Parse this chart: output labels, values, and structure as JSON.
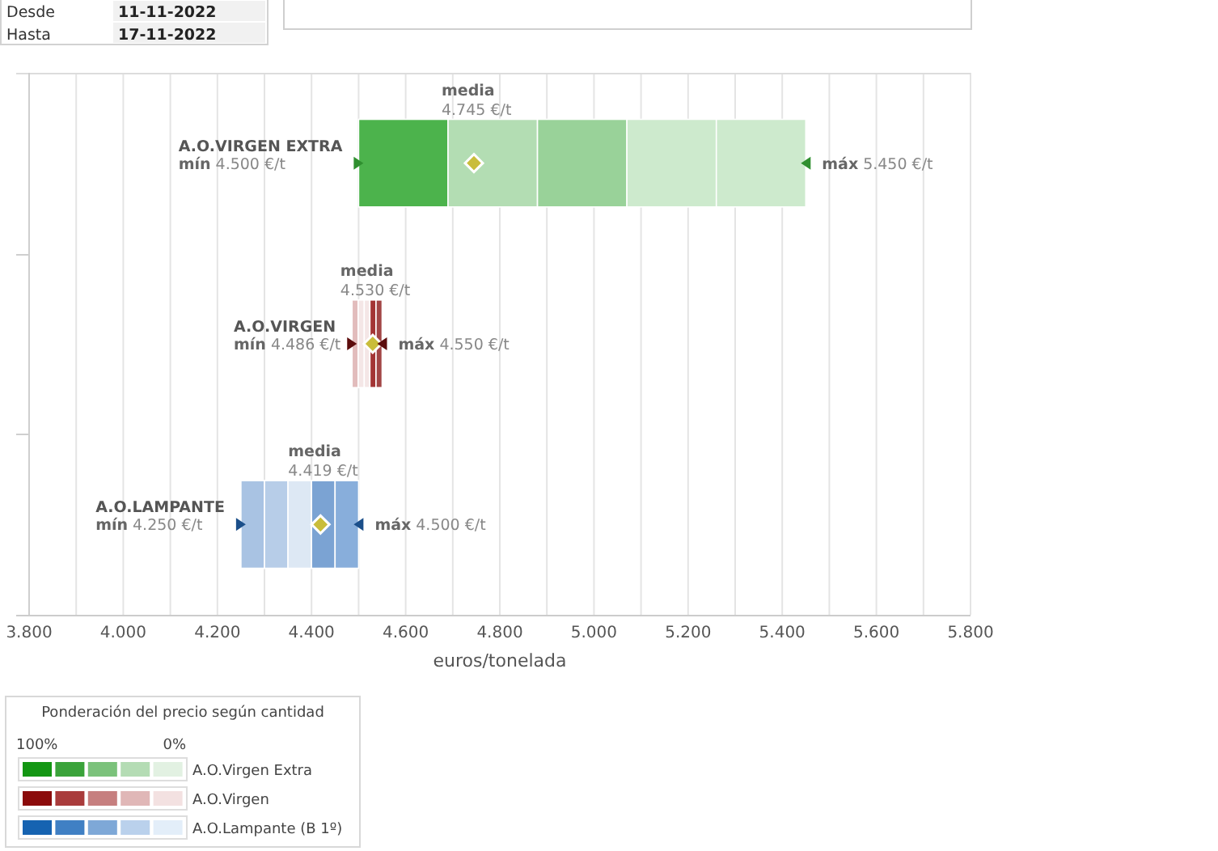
{
  "chart_data": {
    "type": "bar",
    "orientation": "horizontal",
    "categories": [
      "A.O.VIRGEN EXTRA",
      "A.O.VIRGEN",
      "A.O.LAMPANTE"
    ],
    "series": [
      {
        "base": [
          4500,
          4486,
          4250
        ],
        "values": [
          190,
          13,
          50
        ],
        "colors": [
          "#4cb34c",
          "#e2bcbc",
          "#a9c3e3"
        ]
      },
      {
        "base": [
          4690,
          4499,
          4300
        ],
        "values": [
          190,
          13,
          50
        ],
        "colors": [
          "#b3ddb3",
          "#f4e6e6",
          "#b7cde8"
        ]
      },
      {
        "base": [
          4880,
          4512,
          4350
        ],
        "values": [
          190,
          12,
          50
        ],
        "colors": [
          "#99d299",
          "#f4e6e6",
          "#dde8f4"
        ]
      },
      {
        "base": [
          5070,
          4524,
          4400
        ],
        "values": [
          190,
          13,
          50
        ],
        "colors": [
          "#cdeacd",
          "#a33434",
          "#7ba3d3"
        ]
      },
      {
        "base": [
          5260,
          4537,
          4450
        ],
        "values": [
          190,
          13,
          50
        ],
        "colors": [
          "#cdeacd",
          "#a24545",
          "#88aedb"
        ]
      },
      {
        "type": "scatter",
        "marker": "diamond",
        "color": "#c9bd3b",
        "values": [
          4745,
          4530,
          4419
        ]
      },
      {
        "type": "scatter",
        "marker": "triangle",
        "colors": [
          "#2f8f2f",
          "#5c0c0c",
          "#1b4f8a"
        ],
        "values": [
          4500,
          4486,
          4250
        ]
      },
      {
        "type": "scatter",
        "marker": "triangle",
        "colors": [
          "#2f8f2f",
          "#5c0c0c",
          "#1b4f8a"
        ],
        "values": [
          5450,
          4550,
          4500
        ]
      }
    ],
    "xlabel": "euros/tonelada",
    "xlim": [
      3800,
      5800
    ],
    "xticks": [
      {
        "value": 3800,
        "label": "3.800"
      },
      {
        "value": 3900,
        "label": null
      },
      {
        "value": 4000,
        "label": "4.000"
      },
      {
        "value": 4100,
        "label": null
      },
      {
        "value": 4200,
        "label": "4.200"
      },
      {
        "value": 4300,
        "label": null
      },
      {
        "value": 4400,
        "label": "4.400"
      },
      {
        "value": 4500,
        "label": null
      },
      {
        "value": 4600,
        "label": "4.600"
      },
      {
        "value": 4700,
        "label": null
      },
      {
        "value": 4800,
        "label": "4.800"
      },
      {
        "value": 4900,
        "label": null
      },
      {
        "value": 5000,
        "label": "5.000"
      },
      {
        "value": 5100,
        "label": null
      },
      {
        "value": 5200,
        "label": "5.200"
      },
      {
        "value": 5300,
        "label": null
      },
      {
        "value": 5400,
        "label": "5.400"
      },
      {
        "value": 5500,
        "label": null
      },
      {
        "value": 5600,
        "label": "5.600"
      },
      {
        "value": 5700,
        "label": null
      },
      {
        "value": 5800,
        "label": "5.800"
      }
    ],
    "grid": "x",
    "legend_title": "Ponderación del precio según cantidad",
    "annotations": [
      "Desde",
      "11-11-2022",
      "Hasta",
      "17-11-2022",
      "100%",
      "0%",
      "A.O.Virgen Extra",
      "A.O.Virgen",
      "A.O.Lampante (B 1º)",
      "media",
      "4.745 €/t",
      "mín",
      "4.500 €/t",
      "máx",
      "5.450 €/t",
      "media",
      "4.530 €/t",
      "mín",
      "4.486 €/t",
      "máx",
      "4.550 €/t",
      "media",
      "4.419 €/t",
      "mín",
      "4.250 €/t",
      "máx",
      "4.500 €/t"
    ]
  }
}
